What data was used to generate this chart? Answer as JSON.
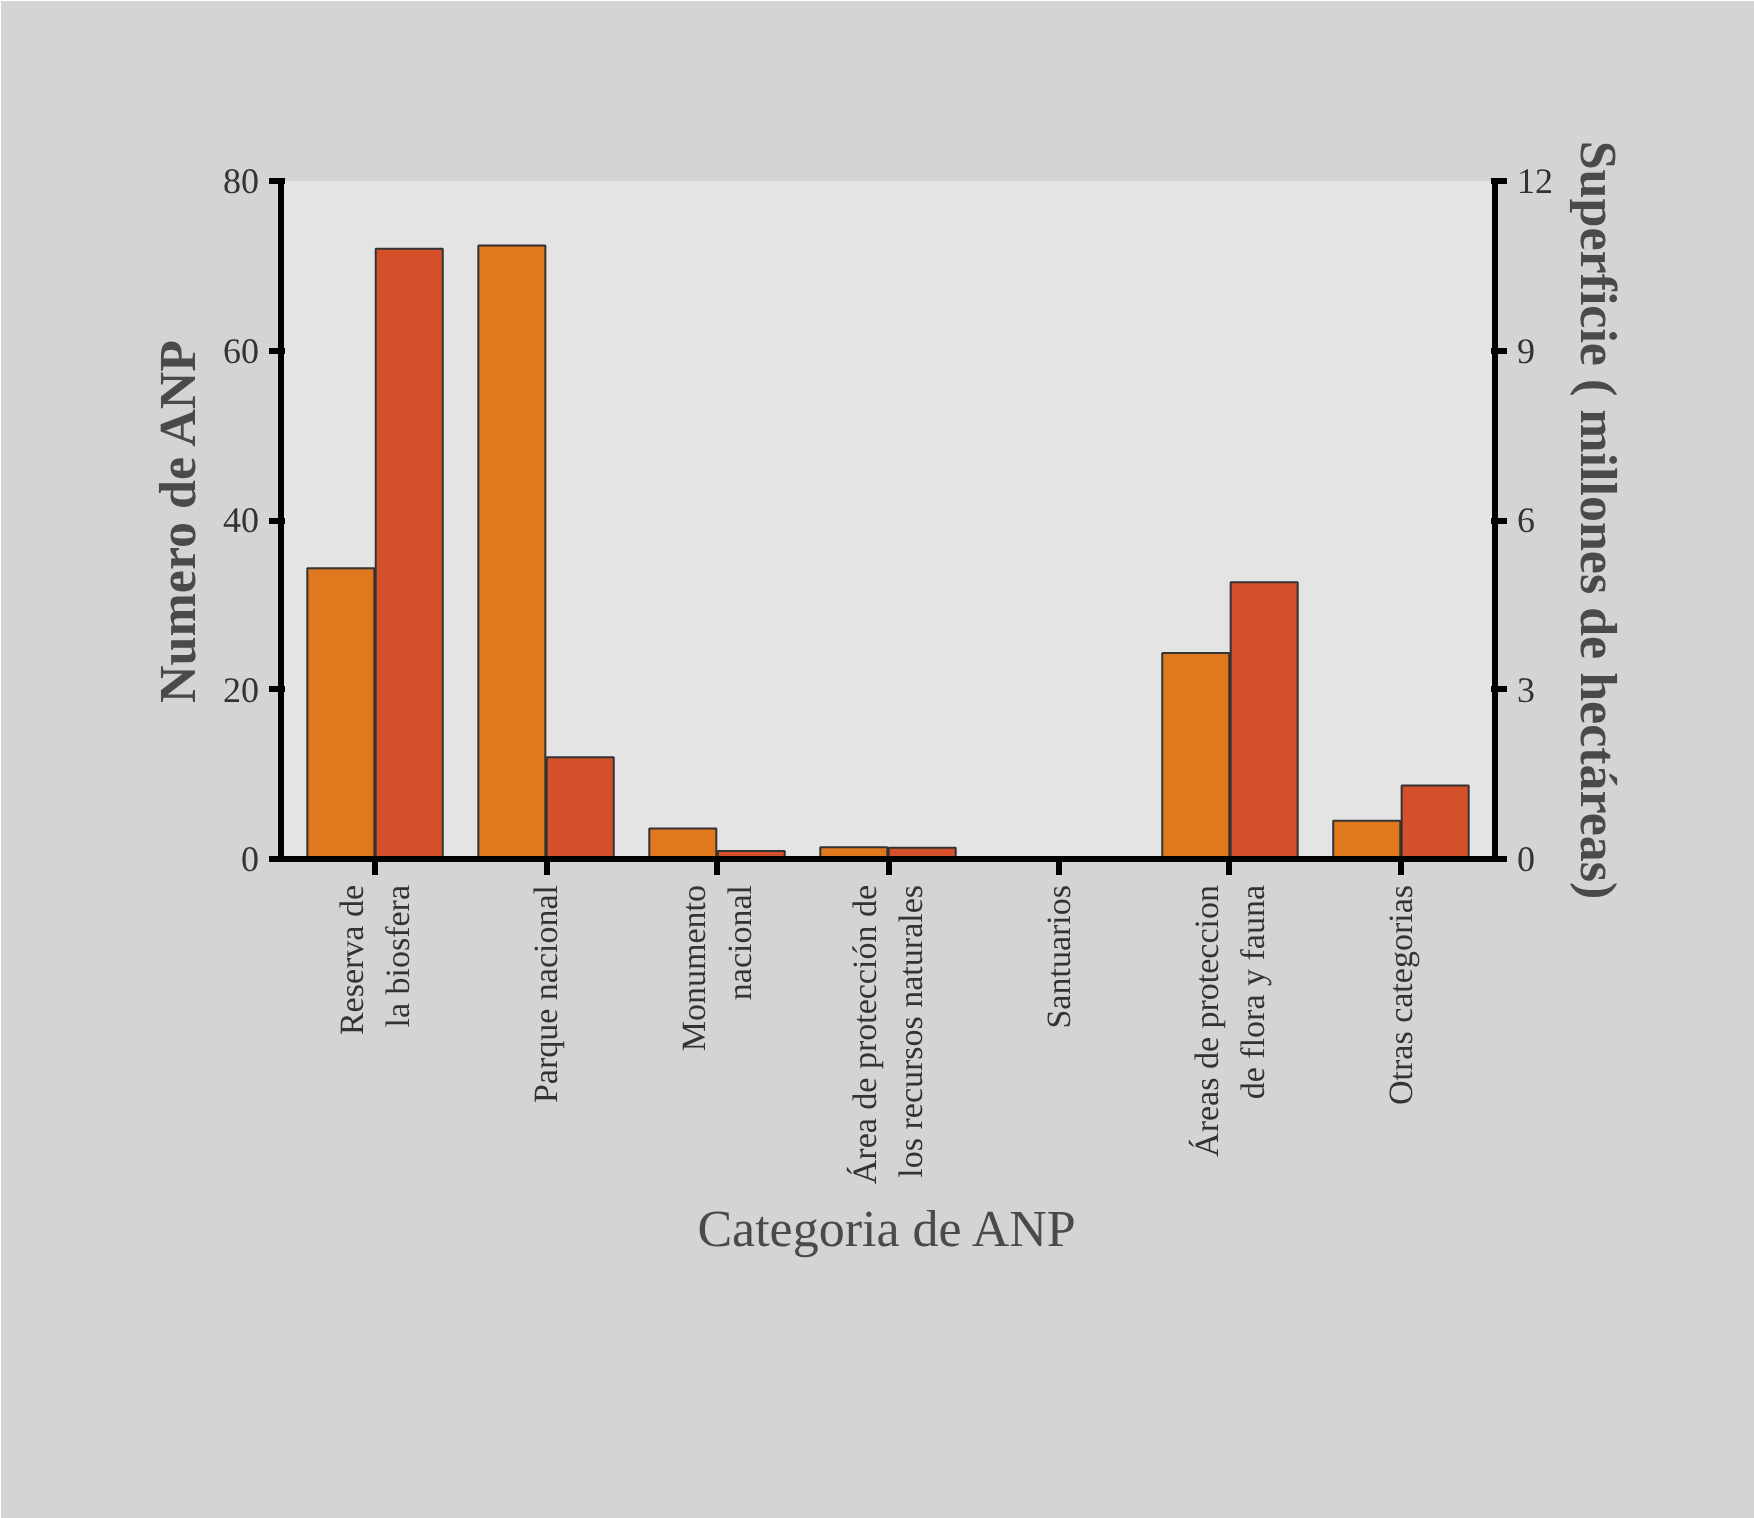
{
  "chart_data": {
    "type": "bar",
    "xlabel": "Categoria de ANP",
    "ylabel": "Numero de ANP",
    "y2label": "Superficie ( millones de hectáreas)",
    "categories": [
      "Reserva de\nla biosfera",
      "Parque nacional",
      "Monumento\nnacional",
      "Área de protección de\nlos recursos naturales",
      "Santuarios",
      "Áreas de proteccion\nde flora y fauna",
      "Otras categorias"
    ],
    "series": [
      {
        "color": "#e0781e",
        "values": [
          34.3,
          72.4,
          3.6,
          1.4,
          0,
          24.3,
          4.5
        ]
      },
      {
        "color": "#d4502a",
        "axis": "y2",
        "values": [
          10.8,
          1.8,
          0.14,
          0.2,
          0,
          4.9,
          1.3
        ]
      }
    ],
    "ylim": [
      0,
      80
    ],
    "yticks": [
      0,
      20,
      40,
      60,
      80
    ],
    "y2lim": [
      0,
      12
    ],
    "y2ticks": [
      0,
      3,
      6,
      9,
      12
    ]
  }
}
